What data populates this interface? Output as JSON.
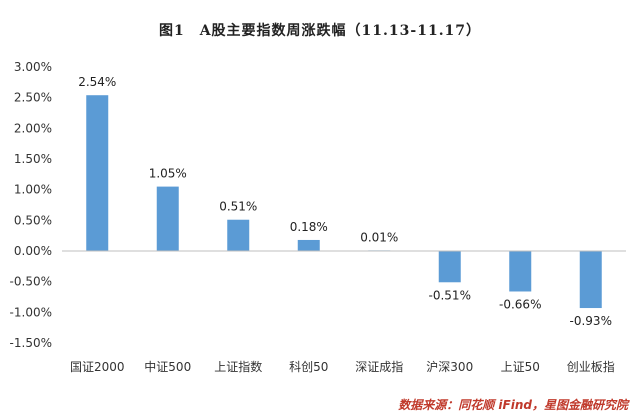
{
  "chart_data": {
    "type": "bar",
    "title": "图1　A股主要指数周涨跌幅（11.13-11.17）",
    "categories": [
      "国证2000",
      "中证500",
      "上证指数",
      "科创50",
      "深证成指",
      "沪深300",
      "上证50",
      "创业板指"
    ],
    "values": [
      2.54,
      1.05,
      0.51,
      0.18,
      0.01,
      -0.51,
      -0.66,
      -0.93
    ],
    "data_labels": [
      "2.54%",
      "1.05%",
      "0.51%",
      "0.18%",
      "0.01%",
      "-0.51%",
      "-0.66%",
      "-0.93%"
    ],
    "ylim": [
      -1.5,
      3.0
    ],
    "yticks": [
      3.0,
      2.5,
      2.0,
      1.5,
      1.0,
      0.5,
      0.0,
      -0.5,
      -1.0,
      -1.5
    ],
    "ytick_labels": [
      "3.00%",
      "2.50%",
      "2.00%",
      "1.50%",
      "1.00%",
      "0.50%",
      "0.00%",
      "-0.50%",
      "-1.00%",
      "-1.50%"
    ],
    "xlabel": "",
    "ylabel": "",
    "grid": false,
    "bar_color": "#5b9bd5",
    "axis_color": "#bfbfbf"
  },
  "source": "数据来源：同花顺 iFind，星图金融研究院"
}
